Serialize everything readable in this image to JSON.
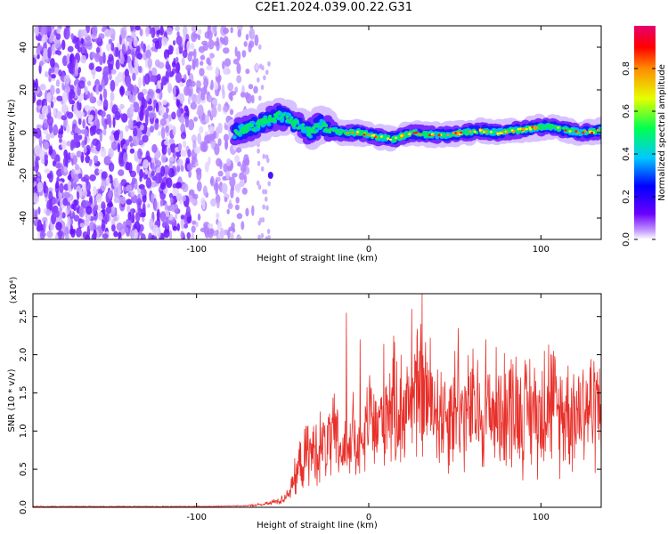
{
  "title": "C2E1.2024.039.00.22.G31",
  "chart_data": [
    {
      "type": "heatmap",
      "xlabel": "Height of straight line (km)",
      "ylabel": "Frequency (Hz)",
      "xlim": [
        -195,
        135
      ],
      "ylim": [
        -50,
        50
      ],
      "x_ticks": [
        -100,
        0,
        100
      ],
      "y_ticks": [
        -40,
        -20,
        0,
        20,
        40
      ],
      "colorbar": {
        "label": "Normalized spectral amplitude",
        "range": [
          0.0,
          1.0
        ],
        "ticks": [
          "0.0",
          "0.2",
          "0.4",
          "0.6",
          "0.8"
        ],
        "colors": [
          "#ffffff",
          "#a24bff",
          "#5a00ff",
          "#0000ff",
          "#00c8ff",
          "#00ff50",
          "#e6ff00",
          "#ff8c00",
          "#ff0000",
          "#e6006e"
        ]
      },
      "signal_ridge": {
        "x": [
          -78,
          -70,
          -60,
          -52,
          -46,
          -40,
          -34,
          -28,
          -22,
          -15,
          -5,
          5,
          15,
          25,
          35,
          45,
          55,
          65,
          75,
          85,
          95,
          105,
          115,
          125,
          135
        ],
        "freq": [
          0,
          2,
          5,
          8,
          6,
          3,
          0,
          4,
          1,
          0,
          0,
          -2,
          -3,
          0,
          -1,
          -1,
          0,
          1,
          0,
          1,
          2,
          3,
          1,
          0,
          1
        ]
      },
      "noise_region_x": [
        -195,
        -65
      ]
    },
    {
      "type": "line",
      "xlabel": "Height of straight line (km)",
      "ylabel": "SNR (10 * v/v)",
      "multiplier": "(x10⁴)",
      "xlim": [
        -195,
        135
      ],
      "ylim": [
        0.0,
        2.8
      ],
      "x_ticks": [
        -100,
        0,
        100
      ],
      "y_ticks": [
        "0.0",
        "0.5",
        "1.0",
        "1.5",
        "2.0",
        "2.5"
      ],
      "line_color": "#e8302a",
      "series": [
        {
          "x": [
            -195,
            -150,
            -100,
            -70,
            -60,
            -50,
            -45,
            -40,
            -35,
            -30,
            -25,
            -20,
            -15,
            -10,
            -5,
            0,
            5,
            10,
            15,
            20,
            25,
            30,
            35,
            40,
            45,
            50,
            55,
            60,
            65,
            70,
            75,
            80,
            85,
            90,
            95,
            100,
            105,
            110,
            115,
            120,
            125,
            130,
            135
          ],
          "y": [
            0.01,
            0.01,
            0.01,
            0.02,
            0.04,
            0.1,
            0.25,
            0.55,
            0.7,
            0.75,
            0.8,
            0.9,
            0.7,
            1.0,
            0.6,
            1.2,
            1.0,
            1.4,
            1.3,
            1.3,
            1.4,
            1.5,
            1.4,
            1.3,
            1.2,
            1.35,
            1.2,
            1.3,
            1.2,
            1.3,
            1.25,
            1.3,
            1.35,
            1.2,
            1.3,
            1.2,
            1.45,
            1.2,
            1.3,
            1.25,
            1.35,
            1.3,
            1.4
          ]
        }
      ],
      "spikes": [
        {
          "x": -13,
          "y": 2.55
        },
        {
          "x": -5,
          "y": 2.2
        },
        {
          "x": 25,
          "y": 2.6
        },
        {
          "x": 31,
          "y": 2.8
        },
        {
          "x": 52,
          "y": 2.35
        },
        {
          "x": 68,
          "y": 2.2
        },
        {
          "x": 102,
          "y": 2.05
        }
      ]
    }
  ]
}
